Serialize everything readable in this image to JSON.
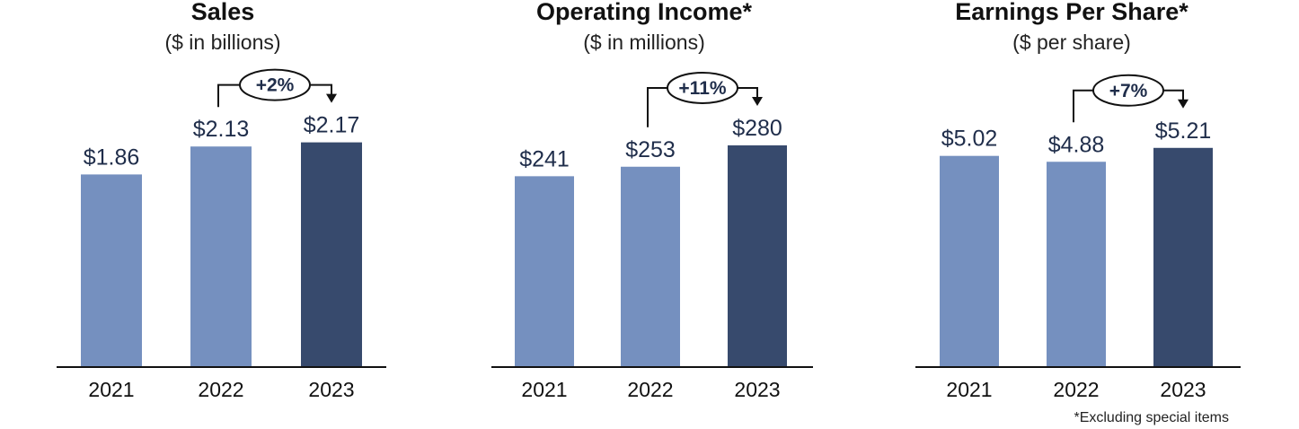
{
  "chart_data": [
    {
      "type": "bar",
      "title": "Sales",
      "subtitle": "($ in billions)",
      "categories": [
        "2021",
        "2022",
        "2023"
      ],
      "values": [
        1.86,
        2.13,
        2.17
      ],
      "value_labels": [
        "$1.86",
        "$2.13",
        "$2.17"
      ],
      "ylim": [
        0,
        2.6
      ],
      "annotation": "+2%",
      "colors": [
        "#7590bf",
        "#7590bf",
        "#374a6d"
      ]
    },
    {
      "type": "bar",
      "title": "Operating Income*",
      "subtitle": "($ in millions)",
      "categories": [
        "2021",
        "2022",
        "2023"
      ],
      "values": [
        241,
        253,
        280
      ],
      "value_labels": [
        "$241",
        "$253",
        "$280"
      ],
      "ylim": [
        0,
        340
      ],
      "annotation": "+11%",
      "colors": [
        "#7590bf",
        "#7590bf",
        "#374a6d"
      ]
    },
    {
      "type": "bar",
      "title": "Earnings Per Share*",
      "subtitle": "($ per share)",
      "categories": [
        "2021",
        "2022",
        "2023"
      ],
      "values": [
        5.02,
        4.88,
        5.21
      ],
      "value_labels": [
        "$5.02",
        "$4.88",
        "$5.21"
      ],
      "ylim": [
        0,
        6.4
      ],
      "annotation": "+7%",
      "colors": [
        "#7590bf",
        "#7590bf",
        "#374a6d"
      ]
    }
  ],
  "footnote": "*Excluding special items",
  "label_color": "#1f2d4a"
}
